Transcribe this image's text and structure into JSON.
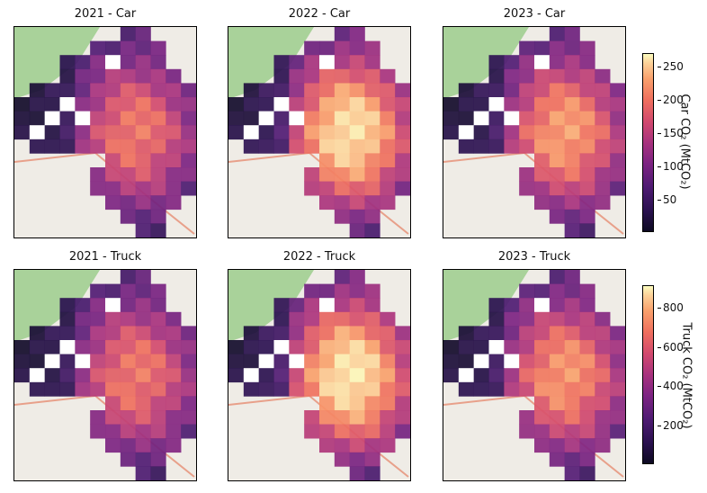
{
  "chart_data": [
    {
      "type": "heatmap",
      "title": "2021 - Car",
      "mode": "car",
      "year": "2021"
    },
    {
      "type": "heatmap",
      "title": "2022 - Car",
      "mode": "car",
      "year": "2022"
    },
    {
      "type": "heatmap",
      "title": "2023 - Car",
      "mode": "car",
      "year": "2023"
    },
    {
      "type": "heatmap",
      "title": "2021 - Truck",
      "mode": "truck",
      "year": "2021"
    },
    {
      "type": "heatmap",
      "title": "2022 - Truck",
      "mode": "truck",
      "year": "2022"
    },
    {
      "type": "heatmap",
      "title": "2023 - Truck",
      "mode": "truck",
      "year": "2023"
    }
  ],
  "colorbars": {
    "car": {
      "label": "Car CO₂ (MtCO₂)",
      "ticks": [
        "250",
        "200",
        "150",
        "100",
        "50"
      ],
      "range": [
        0,
        270
      ]
    },
    "truck": {
      "label": "Truck CO₂ (MtCO₂)",
      "ticks": [
        "800",
        "600",
        "400",
        "200"
      ],
      "range": [
        0,
        920
      ]
    }
  },
  "colormap": "magma"
}
